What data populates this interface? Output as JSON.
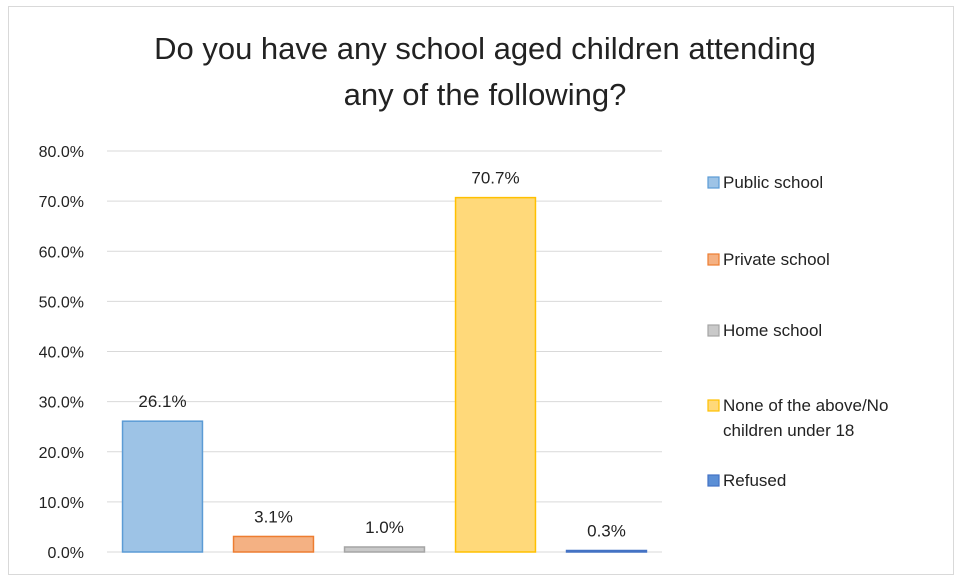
{
  "chart_data": {
    "type": "bar",
    "title": "Do you have any school aged children attending any of the following?",
    "title_lines": [
      "Do you have any school aged children attending",
      "any of the following?"
    ],
    "ylim": [
      0,
      80
    ],
    "yticks": [
      0,
      10,
      20,
      30,
      40,
      50,
      60,
      70,
      80
    ],
    "ytick_labels": [
      "0.0%",
      "10.0%",
      "20.0%",
      "30.0%",
      "40.0%",
      "50.0%",
      "60.0%",
      "70.0%",
      "80.0%"
    ],
    "grid": true,
    "legend_position": "right",
    "series": [
      {
        "name": "Public school",
        "value": 26.1,
        "label": "26.1%",
        "color": "#9dc3e6",
        "stroke": "#5b9bd5"
      },
      {
        "name": "Private school",
        "value": 3.1,
        "label": "3.1%",
        "color": "#f4b183",
        "stroke": "#ed7d31"
      },
      {
        "name": "Home school",
        "value": 1.0,
        "label": "1.0%",
        "color": "#c9c9c9",
        "stroke": "#a5a5a5"
      },
      {
        "name": "None of the above/No children under 18",
        "legend_lines": [
          "None of the above/No",
          "children under 18"
        ],
        "value": 70.7,
        "label": "70.7%",
        "color": "#ffd97a",
        "stroke": "#ffc000"
      },
      {
        "name": "Refused",
        "value": 0.3,
        "label": "0.3%",
        "color": "#5b8fd6",
        "stroke": "#4472c4"
      }
    ]
  }
}
